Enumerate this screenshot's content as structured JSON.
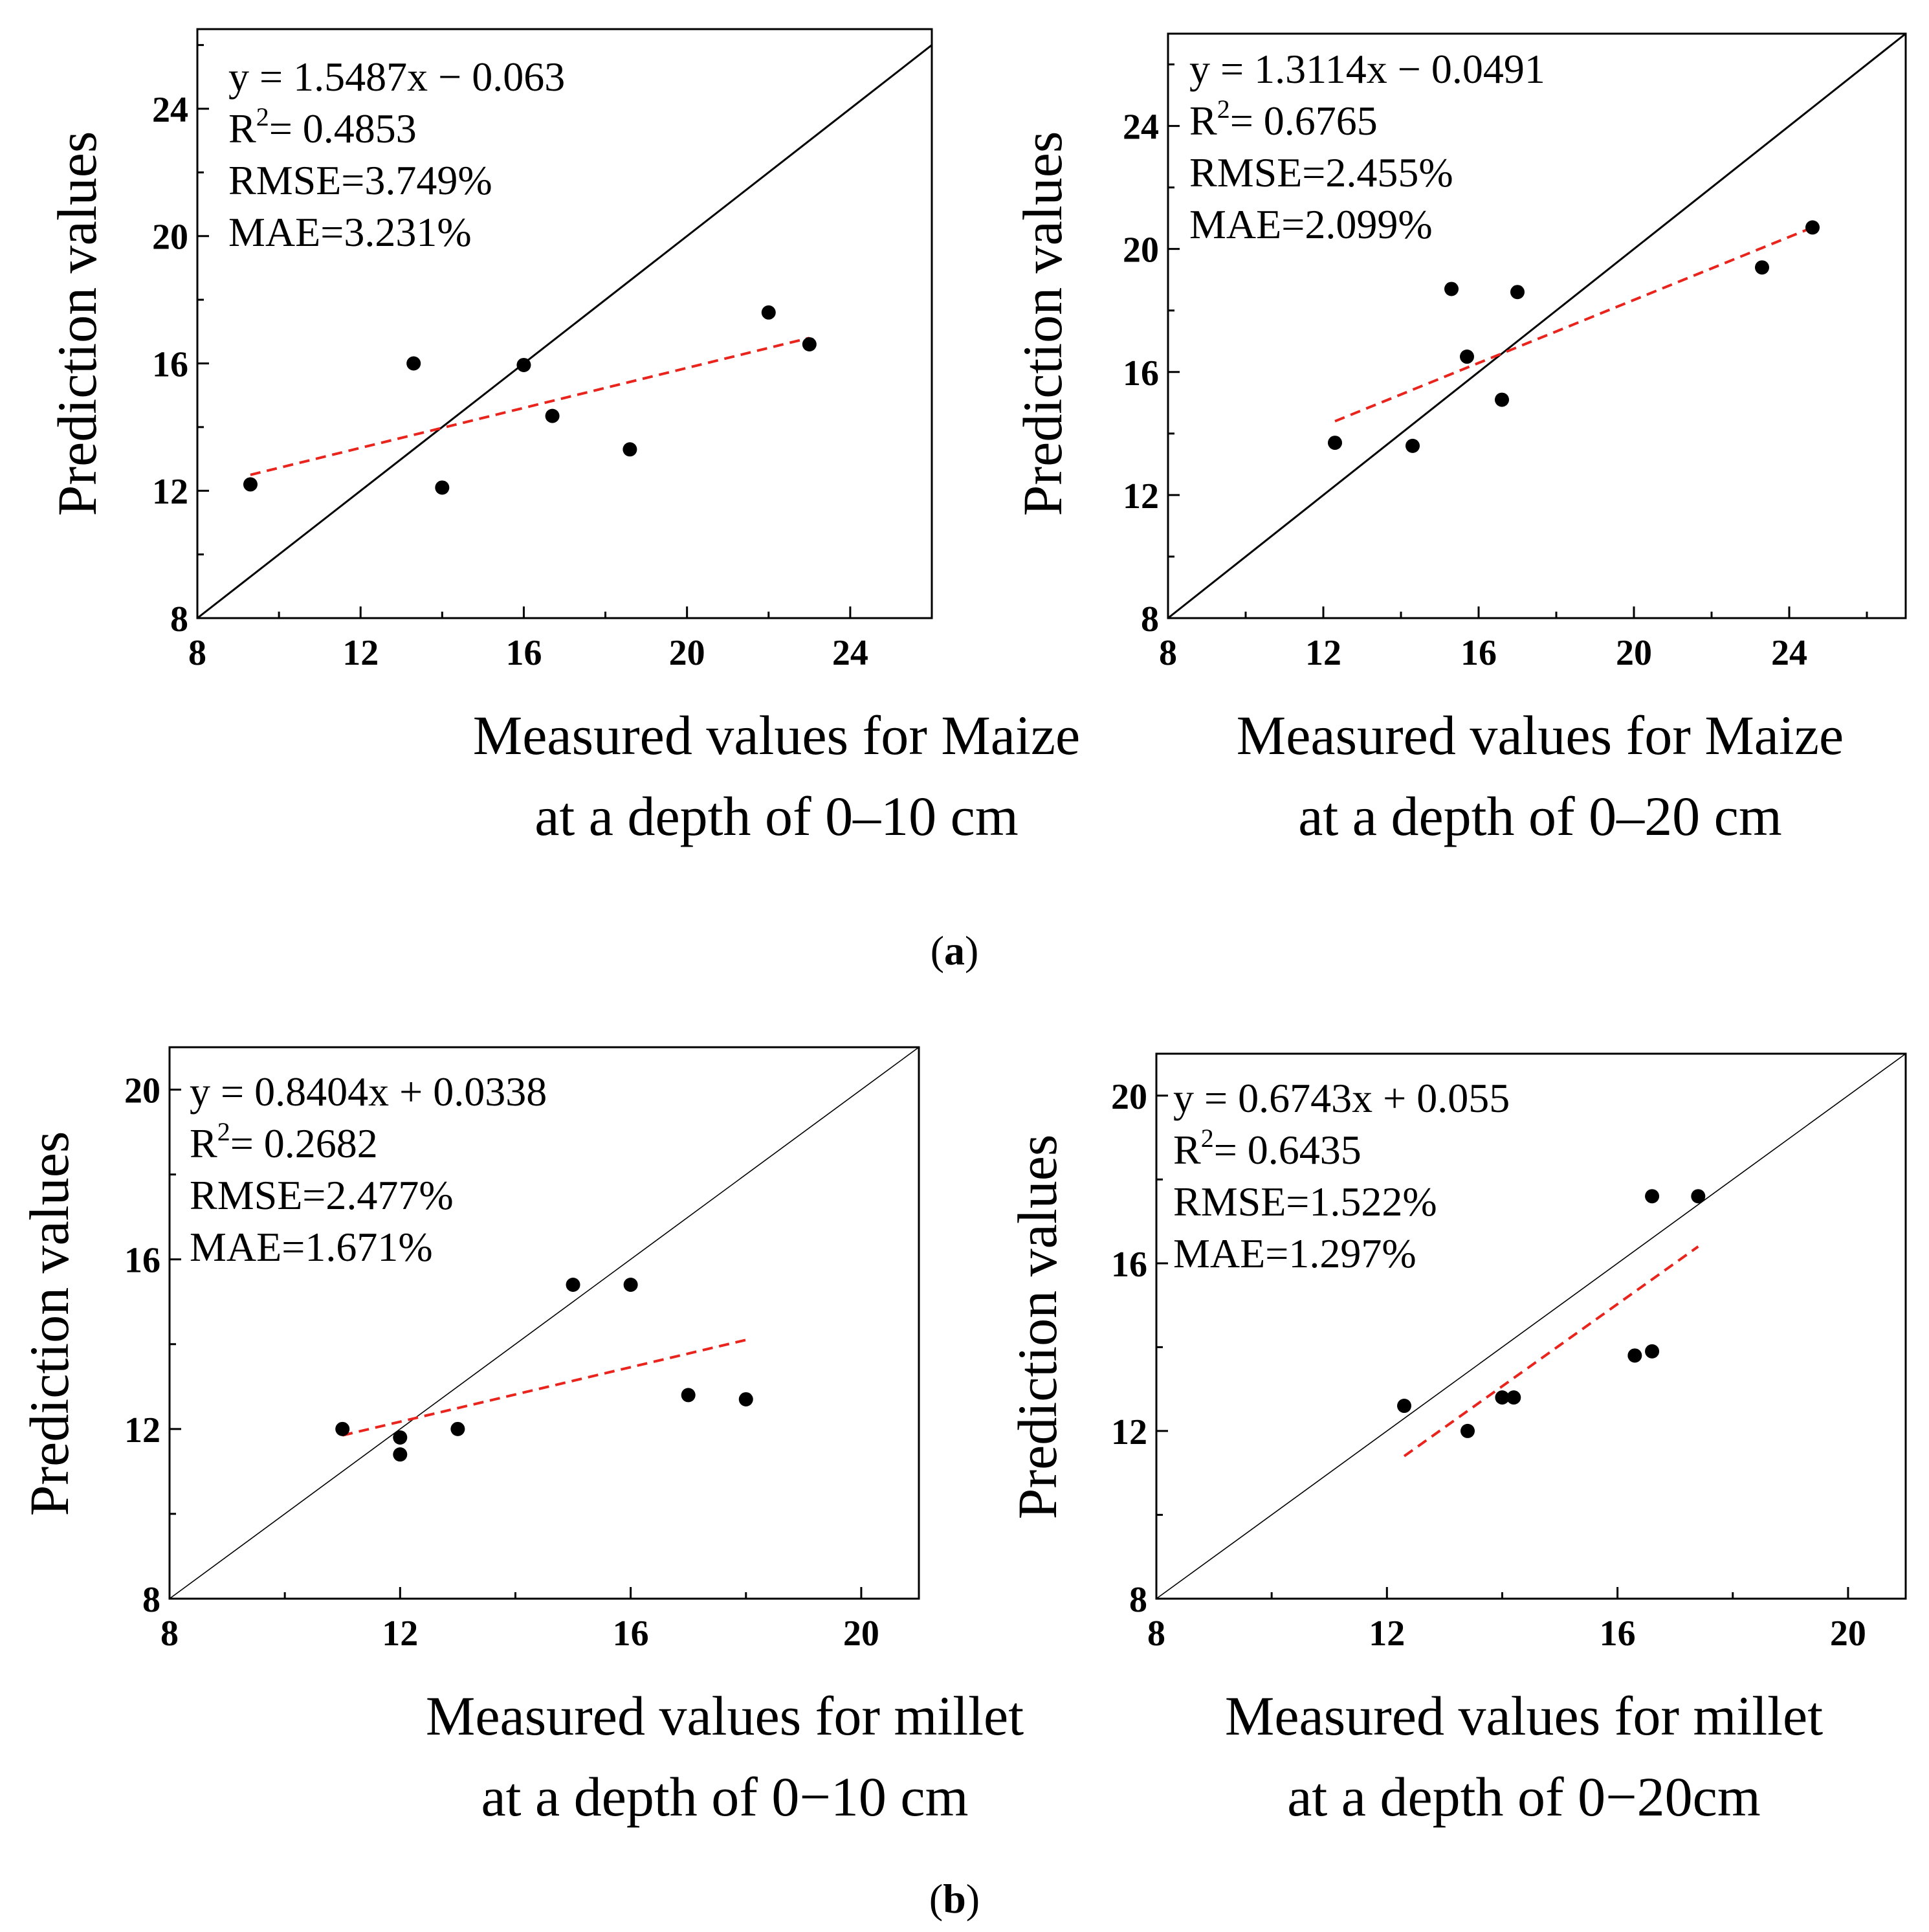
{
  "colors": {
    "frame": "#000000",
    "point": "#000000",
    "fit_line": "#e8241d",
    "identity_line": "#000000"
  },
  "panel_labels": {
    "a": "a",
    "b": "b"
  },
  "chart_data": [
    {
      "type": "scatter",
      "id": "maize-0-10",
      "ylabel": "Prediction values",
      "xlabel_lines": [
        "Measured values for Maize",
        "at a depth of 0–10 cm"
      ],
      "xlim": [
        8,
        26
      ],
      "ylim": [
        8,
        26.5
      ],
      "xticks": [
        8,
        12,
        16,
        20,
        24
      ],
      "yticks": [
        8,
        12,
        16,
        20,
        24
      ],
      "points": [
        [
          9.3,
          12.2
        ],
        [
          13.3,
          16.0
        ],
        [
          14.0,
          12.1
        ],
        [
          16.0,
          15.95
        ],
        [
          16.7,
          14.35
        ],
        [
          18.6,
          13.3
        ],
        [
          22.0,
          17.6
        ],
        [
          23.0,
          16.6
        ]
      ],
      "fit_line": [
        [
          9.3,
          12.5
        ],
        [
          23.0,
          16.8
        ]
      ],
      "annotations": {
        "equation": "y = 1.5487x − 0.063",
        "r2_prefix": "R",
        "r2_sup": "2",
        "r2_value": "= 0.4853",
        "rmse": "RMSE=3.749%",
        "mae": "MAE=3.231%"
      }
    },
    {
      "type": "scatter",
      "id": "maize-0-20",
      "ylabel": "Prediction values",
      "xlabel_lines": [
        "Measured values for Maize",
        "at a depth of 0–20 cm"
      ],
      "xlim": [
        8,
        27
      ],
      "ylim": [
        8,
        27
      ],
      "xticks": [
        8,
        12,
        16,
        20,
        24
      ],
      "yticks": [
        8,
        12,
        16,
        20,
        24
      ],
      "points": [
        [
          12.3,
          13.7
        ],
        [
          14.3,
          13.6
        ],
        [
          15.3,
          18.7
        ],
        [
          15.7,
          16.5
        ],
        [
          16.6,
          15.1
        ],
        [
          17.0,
          18.6
        ],
        [
          23.3,
          19.4
        ],
        [
          24.6,
          20.7
        ]
      ],
      "fit_line": [
        [
          12.3,
          14.4
        ],
        [
          24.6,
          20.7
        ]
      ],
      "annotations": {
        "equation": "y = 1.3114x − 0.0491",
        "r2_prefix": "R",
        "r2_sup": "2",
        "r2_value": "= 0.6765",
        "rmse": "RMSE=2.455%",
        "mae": "MAE=2.099%"
      }
    },
    {
      "type": "scatter",
      "id": "millet-0-10",
      "ylabel": "Prediction values",
      "xlabel_lines": [
        "Measured values for millet",
        "at a depth of 0−10 cm"
      ],
      "xlim": [
        8,
        21
      ],
      "ylim": [
        8,
        21
      ],
      "xticks": [
        8,
        12,
        16,
        20
      ],
      "yticks": [
        8,
        12,
        16,
        20
      ],
      "points": [
        [
          11.0,
          12.0
        ],
        [
          12.0,
          11.8
        ],
        [
          12.0,
          11.4
        ],
        [
          13.0,
          12.0
        ],
        [
          15.0,
          15.4
        ],
        [
          16.0,
          15.4
        ],
        [
          17.0,
          12.8
        ],
        [
          18.0,
          12.7
        ]
      ],
      "fit_line": [
        [
          11.0,
          11.85
        ],
        [
          18.0,
          14.1
        ]
      ],
      "annotations": {
        "equation": "y = 0.8404x + 0.0338",
        "r2_prefix": "R",
        "r2_sup": "2",
        "r2_value": "= 0.2682",
        "rmse": "RMSE=2.477%",
        "mae": "MAE=1.671%"
      }
    },
    {
      "type": "scatter",
      "id": "millet-0-20",
      "ylabel": "Prediction values",
      "xlabel_lines": [
        "Measured values for millet",
        "at a depth of 0−20cm"
      ],
      "xlim": [
        8,
        21
      ],
      "ylim": [
        8,
        21
      ],
      "xticks": [
        8,
        12,
        16,
        20
      ],
      "yticks": [
        8,
        12,
        16,
        20
      ],
      "points": [
        [
          12.3,
          12.6
        ],
        [
          13.4,
          12.0
        ],
        [
          14.0,
          12.8
        ],
        [
          14.2,
          12.8
        ],
        [
          16.3,
          13.8
        ],
        [
          16.6,
          13.9
        ],
        [
          16.6,
          17.6
        ],
        [
          17.4,
          17.6
        ]
      ],
      "fit_line": [
        [
          12.3,
          11.4
        ],
        [
          17.4,
          16.4
        ]
      ],
      "annotations": {
        "equation": "y = 0.6743x + 0.055",
        "r2_prefix": "R",
        "r2_sup": "2",
        "r2_value": "= 0.6435",
        "rmse": "RMSE=1.522%",
        "mae": "MAE=1.297%"
      }
    }
  ]
}
